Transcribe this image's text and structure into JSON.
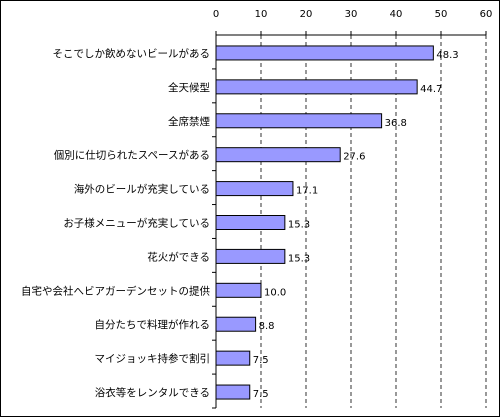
{
  "chart_data": {
    "type": "bar",
    "orientation": "horizontal",
    "categories": [
      "そこでしか飲めないビールがある",
      "全天候型",
      "全席禁煙",
      "個別に仕切られたスペースがある",
      "海外のビールが充実している",
      "お子様メニューが充実している",
      "花火ができる",
      "自宅や会社へビアガーデンセットの提供",
      "自分たちで料理が作れる",
      "マイジョッキ持参で割引",
      "浴衣等をレンタルできる"
    ],
    "values": [
      48.3,
      44.7,
      36.8,
      27.6,
      17.1,
      15.3,
      15.3,
      10.0,
      8.8,
      7.5,
      7.5
    ],
    "value_labels": [
      "48.3",
      "44.7",
      "36.8",
      "27.6",
      "17.1",
      "15.3",
      "15.3",
      "10.0",
      "8.8",
      "7.5",
      "7.5"
    ],
    "x_ticks": [
      "0",
      "10",
      "20",
      "30",
      "40",
      "50",
      "60"
    ],
    "xlim": [
      0,
      60
    ],
    "x_axis_position": "top",
    "grid": "vertical dashed",
    "legend": "none",
    "bar_color": "#9999ff",
    "bar_edge_color": "#000000"
  }
}
